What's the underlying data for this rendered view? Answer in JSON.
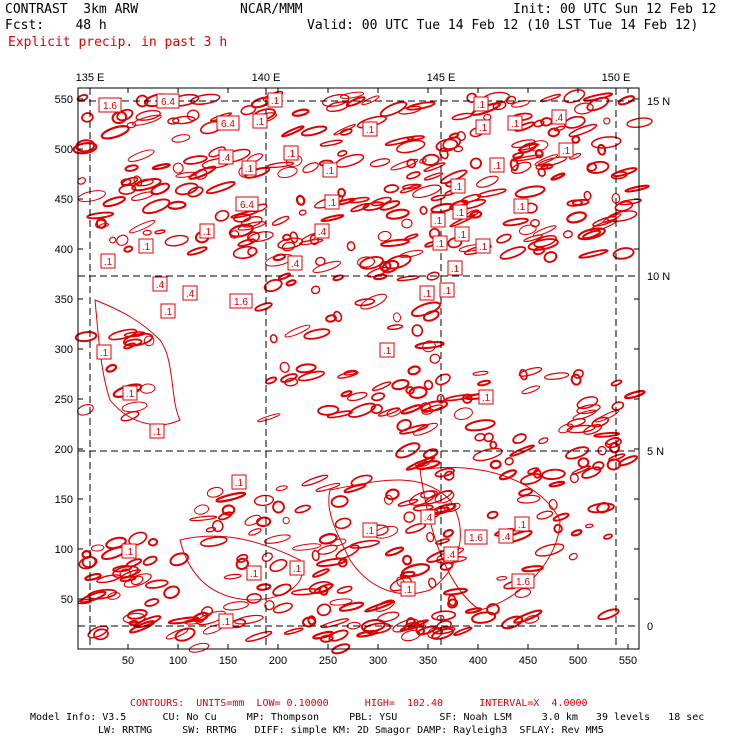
{
  "header": {
    "model": "CONTRAST  3km ARW",
    "fcst": "Fcst:    48 h",
    "center": "NCAR/MMM",
    "init": "Init: 00 UTC Sun 12 Feb 12",
    "valid": "Valid: 00 UTC Tue 14 Feb 12 (10 LST Tue 14 Feb 12)",
    "field": "Explicit precip. in past 3 h"
  },
  "map": {
    "lon_labels": [
      "135 E",
      "140 E",
      "145 E",
      "150 E"
    ],
    "lat_labels": [
      "15 N",
      "10 N",
      "5 N",
      "0"
    ],
    "x_ticks": [
      "50",
      "100",
      "150",
      "200",
      "250",
      "300",
      "350",
      "400",
      "450",
      "500",
      "550"
    ],
    "y_ticks": [
      "50",
      "100",
      "150",
      "200",
      "250",
      "300",
      "350",
      "400",
      "450",
      "500",
      "550"
    ],
    "contour_color": "#e00000",
    "contour_labels": [
      ".1",
      ".4",
      "1.6",
      "6.4"
    ]
  },
  "footer": {
    "contours": "CONTOURS:  UNITS=mm  LOW= 0.10000      HIGH=  102.40      INTERVAL=X  4.0000",
    "line1": "Model Info: V3.5      CU: No Cu     MP: Thompson     PBL: YSU       SF: Noah LSM     3.0 km   39 levels   18 sec",
    "line2": "LW: RRTMG     SW: RRTMG   DIFF: simple KM: 2D Smagor DAMP: Rayleigh3  SFLAY: Rev MM5"
  }
}
